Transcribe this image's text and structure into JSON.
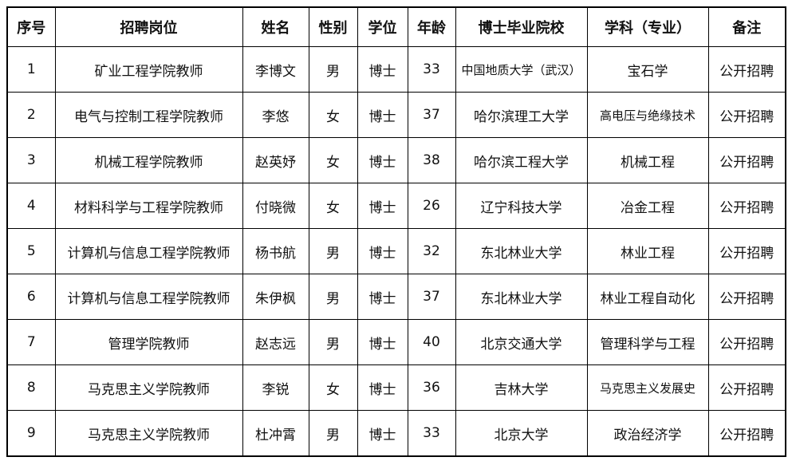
{
  "headers": [
    "序号",
    "招聘岗位",
    "姓名",
    "性别",
    "学位",
    "年龄",
    "博士毕业院校",
    "学科（专业）",
    "备注"
  ],
  "rows": [
    [
      "1",
      "矿业工程学院教师",
      "李博文",
      "男",
      "博士",
      "33",
      "中国地质大学（武汉）",
      "宝石学",
      "公开招聘"
    ],
    [
      "2",
      "电气与控制工程学院教师",
      "李悠",
      "女",
      "博士",
      "37",
      "哈尔滨理工大学",
      "高电压与绝缘技术",
      "公开招聘"
    ],
    [
      "3",
      "机械工程学院教师",
      "赵英妤",
      "女",
      "博士",
      "38",
      "哈尔滨工程大学",
      "机械工程",
      "公开招聘"
    ],
    [
      "4",
      "材料科学与工程学院教师",
      "付晓微",
      "女",
      "博士",
      "26",
      "辽宁科技大学",
      "冶金工程",
      "公开招聘"
    ],
    [
      "5",
      "计算机与信息工程学院教师",
      "杨书航",
      "男",
      "博士",
      "32",
      "东北林业大学",
      "林业工程",
      "公开招聘"
    ],
    [
      "6",
      "计算机与信息工程学院教师",
      "朱伊枫",
      "男",
      "博士",
      "37",
      "东北林业大学",
      "林业工程自动化",
      "公开招聘"
    ],
    [
      "7",
      "管理学院教师",
      "赵志远",
      "男",
      "博士",
      "40",
      "北京交通大学",
      "管理科学与工程",
      "公开招聘"
    ],
    [
      "8",
      "马克思主义学院教师",
      "李锐",
      "女",
      "博士",
      "36",
      "吉林大学",
      "马克思主义发展史",
      "公开招聘"
    ],
    [
      "9",
      "马克思主义学院教师",
      "杜冲霄",
      "男",
      "博士",
      "33",
      "北京大学",
      "政治经济学",
      "公开招聘"
    ]
  ]
}
